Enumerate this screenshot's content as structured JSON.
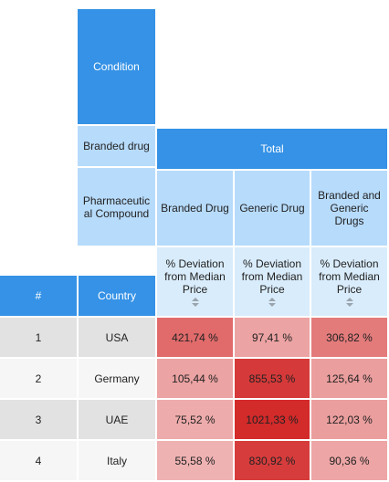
{
  "pivot": {
    "condition_label": "Condition",
    "branded_drug_label": "Branded drug",
    "total_label": "Total",
    "compound_label": "Pharmaceutic al Compound",
    "columns": [
      "Branded Drug",
      "Generic Drug",
      "Branded and Generic Drugs"
    ],
    "measure_label": "% Deviation from Median Price",
    "row_header": {
      "index": "#",
      "country": "Country"
    },
    "rows": [
      {
        "index": "1",
        "country": "USA",
        "values": [
          "421,74 %",
          "97,41 %",
          "306,82 %"
        ],
        "levels": [
          0.41,
          0.1,
          0.3
        ]
      },
      {
        "index": "2",
        "country": "Germany",
        "values": [
          "105,44 %",
          "855,53 %",
          "125,64 %"
        ],
        "levels": [
          0.1,
          0.84,
          0.12
        ]
      },
      {
        "index": "3",
        "country": "UAE",
        "values": [
          "75,52 %",
          "1021,33 %",
          "122,03 %"
        ],
        "levels": [
          0.07,
          1.0,
          0.12
        ]
      },
      {
        "index": "4",
        "country": "Italy",
        "values": [
          "55,58 %",
          "830,92 %",
          "90,36 %"
        ],
        "levels": [
          0.05,
          0.81,
          0.09
        ]
      }
    ],
    "colors": {
      "header": "#3592e6",
      "dimension": "#b7dbfb",
      "heat_low": "#f6d2d2",
      "heat_high": "#d32a2a"
    }
  }
}
